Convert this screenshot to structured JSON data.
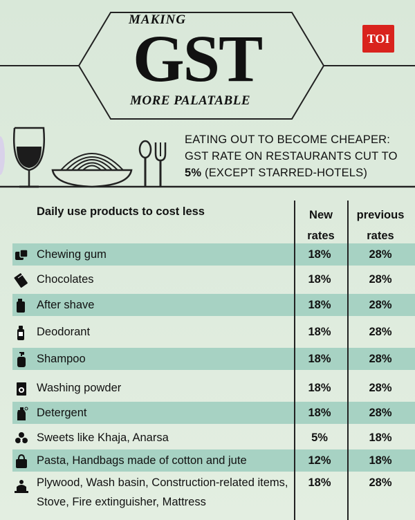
{
  "header": {
    "making": "MAKING",
    "gst": "GST",
    "palatable": "MORE PALATABLE",
    "logo": "TOI"
  },
  "headline": {
    "text": "EATING OUT TO BECOME CHEAPER: GST RATE ON RESTAURANTS CUT TO ",
    "rate": "5%",
    "suffix": " (EXCEPT STARRED-HOTELS)"
  },
  "table": {
    "header_main": "Daily use products to cost less",
    "header_new": "New rates",
    "header_prev": "previous rates",
    "rows": [
      {
        "name": "Chewing gum",
        "new": "18%",
        "prev": "28%",
        "icon": "chewing-gum-icon"
      },
      {
        "name": "Chocolates",
        "new": "18%",
        "prev": "28%",
        "icon": "chocolate-icon"
      },
      {
        "name": "After shave",
        "new": "18%",
        "prev": "28%",
        "icon": "after-shave-icon"
      },
      {
        "name": "Deodorant",
        "new": "18%",
        "prev": "28%",
        "icon": "deodorant-icon"
      },
      {
        "name": "Shampoo",
        "new": "18%",
        "prev": "28%",
        "icon": "shampoo-icon"
      },
      {
        "name": "Washing powder",
        "new": "18%",
        "prev": "28%",
        "icon": "washing-powder-icon"
      },
      {
        "name": "Detergent",
        "new": "18%",
        "prev": "28%",
        "icon": "detergent-icon"
      },
      {
        "name": "Sweets like Khaja, Anarsa",
        "new": "5%",
        "prev": "18%",
        "icon": "sweets-icon"
      },
      {
        "name": "Pasta, Handbags made of cotton and jute",
        "new": "12%",
        "prev": "18%",
        "icon": "handbag-icon"
      },
      {
        "name": "Plywood, Wash basin, Construction-related items, Stove,  Fire extinguisher, Mattress",
        "new": "18%",
        "prev": "28%",
        "icon": "construction-icon"
      }
    ]
  },
  "colors": {
    "band": "#a7d2c3",
    "background": "#dce9db",
    "logo": "#d9231d"
  }
}
